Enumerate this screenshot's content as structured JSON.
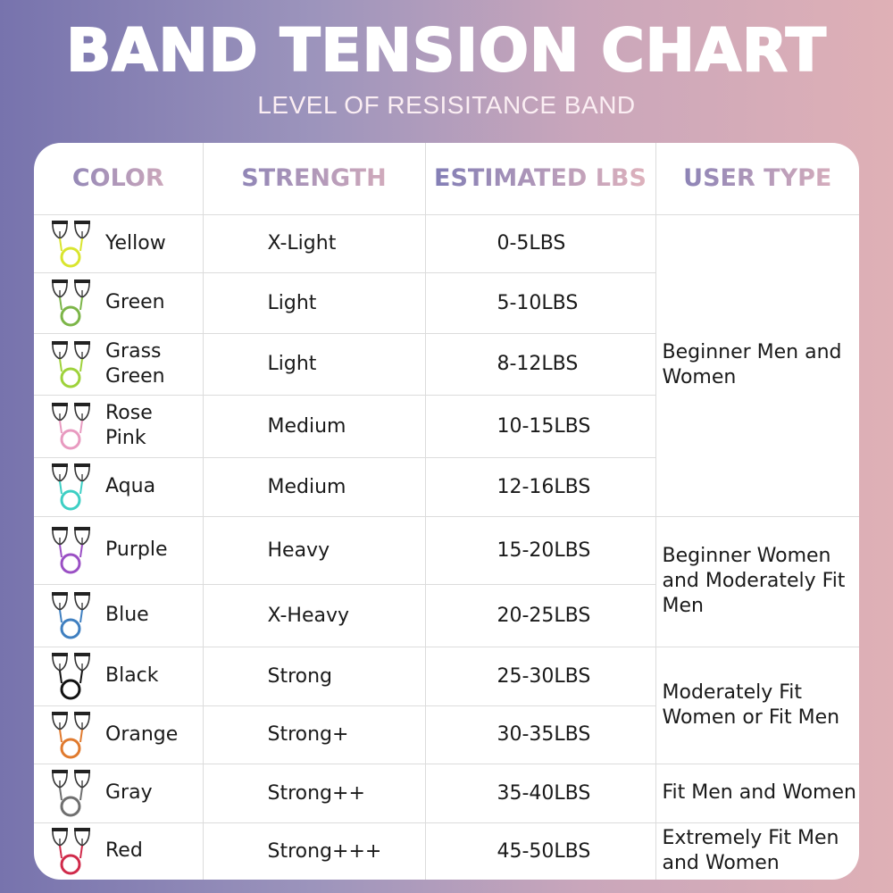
{
  "title": "Band Tension Chart",
  "subtitle": "LEVEL OF RESISITANCE BAND",
  "headers": [
    "Color",
    "Strength",
    "Estimated LBS",
    "User Type"
  ],
  "rows": [
    {
      "color": "Yellow",
      "hex": "#d9e52e",
      "strength": "X-Light",
      "lbs": "0-5LBS"
    },
    {
      "color": "Green",
      "hex": "#7cb548",
      "strength": "Light",
      "lbs": "5-10LBS"
    },
    {
      "color": "Grass Green",
      "hex": "#9ed23a",
      "strength": "Light",
      "lbs": "8-12LBS"
    },
    {
      "color": "Rose Pink",
      "hex": "#e89ac0",
      "strength": "Medium",
      "lbs": "10-15LBS"
    },
    {
      "color": "Aqua",
      "hex": "#3dcfc4",
      "strength": "Medium",
      "lbs": "12-16LBS"
    },
    {
      "color": "Purple",
      "hex": "#9a4fc4",
      "strength": "Heavy",
      "lbs": "15-20LBS"
    },
    {
      "color": "Blue",
      "hex": "#3f7fc0",
      "strength": "X-Heavy",
      "lbs": "20-25LBS"
    },
    {
      "color": "Black",
      "hex": "#111111",
      "strength": "Strong",
      "lbs": "25-30LBS"
    },
    {
      "color": "Orange",
      "hex": "#e07a2e",
      "strength": "Strong+",
      "lbs": "30-35LBS"
    },
    {
      "color": "Gray",
      "hex": "#6f6f6f",
      "strength": "Strong++",
      "lbs": "35-40LBS"
    },
    {
      "color": "Red",
      "hex": "#d02a4a",
      "strength": "Strong+++",
      "lbs": "45-50LBS"
    }
  ],
  "user_types": [
    "Beginner Men and Women",
    "Beginner Women and Moderately Fit Men",
    "Moderately Fit Women or Fit Men",
    "Fit Men and Women",
    "Extremely Fit Men and Women"
  ]
}
